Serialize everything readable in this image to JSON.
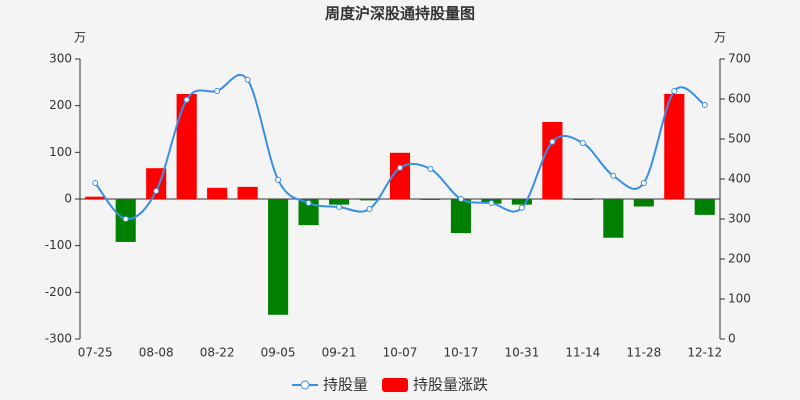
{
  "chart_data": {
    "type": "combo",
    "title": "周度沪深股通持股量图",
    "y_label": "万",
    "y2_label": "万",
    "categories": [
      "07-25",
      null,
      "08-08",
      null,
      "08-22",
      null,
      "09-05",
      null,
      "09-21",
      null,
      "10-07",
      null,
      "10-17",
      null,
      "10-31",
      null,
      "11-14",
      null,
      "11-28",
      null,
      "12-12"
    ],
    "series": [
      {
        "name": "持股量",
        "type": "line",
        "axis": "y2",
        "color": "#3a8ee6",
        "smooth": true,
        "values": [
          390,
          300,
          370,
          598,
          620,
          648,
          398,
          340,
          330,
          325,
          428,
          425,
          350,
          340,
          328,
          493,
          490,
          408,
          390,
          620,
          585
        ]
      },
      {
        "name": "持股量涨跌",
        "type": "bar",
        "color": "#ff0000",
        "negative_color": "#008000",
        "values": [
          5,
          -92,
          66,
          225,
          24,
          26,
          -248,
          -56,
          -12,
          -3,
          99,
          -2,
          -73,
          -10,
          -12,
          165,
          -2,
          -83,
          -16,
          225,
          -34
        ]
      }
    ],
    "ylim": [
      -300,
      300
    ],
    "yticks": [
      -300,
      -200,
      -100,
      0,
      100,
      200,
      300
    ],
    "y2lim": [
      0,
      700
    ],
    "y2ticks": [
      0,
      100,
      200,
      300,
      400,
      500,
      600,
      700
    ],
    "grid": false,
    "legend": "bottom"
  }
}
